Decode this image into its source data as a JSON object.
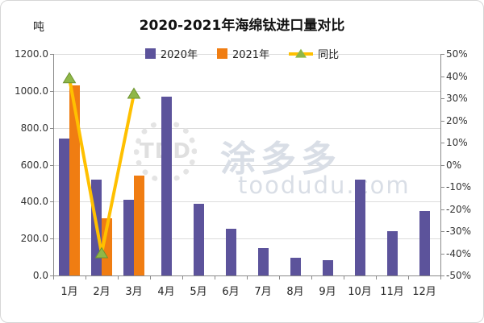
{
  "chart": {
    "title": "2020-2021年海绵钛进口量对比",
    "unit_label": "吨",
    "legend": [
      {
        "label": "2020年"
      },
      {
        "label": "2021年"
      },
      {
        "label": "同比"
      }
    ],
    "watermark": {
      "logo_text": "TDD",
      "brand": "涂多多",
      "domain": "toodudu.com"
    }
  },
  "chart_data": {
    "type": "bar",
    "title": "2020-2021年海绵钛进口量对比",
    "categories": [
      "1月",
      "2月",
      "3月",
      "4月",
      "5月",
      "6月",
      "7月",
      "8月",
      "9月",
      "10月",
      "11月",
      "12月"
    ],
    "series": [
      {
        "name": "2020年",
        "type": "bar",
        "axis": "left",
        "color": "#5c539b",
        "values": [
          740,
          520,
          410,
          970,
          390,
          255,
          150,
          95,
          85,
          520,
          240,
          350
        ]
      },
      {
        "name": "2021年",
        "type": "bar",
        "axis": "left",
        "color": "#f07d12",
        "values": [
          1030,
          310,
          540,
          null,
          null,
          null,
          null,
          null,
          null,
          null,
          null,
          null
        ]
      },
      {
        "name": "同比",
        "type": "line",
        "axis": "right",
        "color": "#ffc000",
        "marker": "triangle",
        "marker_color": "#8fb748",
        "marker_stroke": "#6e9430",
        "values": [
          39,
          -40,
          32,
          null,
          null,
          null,
          null,
          null,
          null,
          null,
          null,
          null
        ]
      }
    ],
    "left_axis": {
      "label": "吨",
      "min": 0,
      "max": 1200,
      "step": 200,
      "tick_labels": [
        "0.0",
        "200.0",
        "400.0",
        "600.0",
        "800.0",
        "1000.0",
        "1200.0"
      ]
    },
    "right_axis": {
      "min": -50,
      "max": 50,
      "step": 10,
      "tick_labels": [
        "-50%",
        "-40%",
        "-30%",
        "-20%",
        "-10%",
        "0%",
        "10%",
        "20%",
        "30%",
        "40%",
        "50%"
      ]
    },
    "grid": true,
    "legend_position": "top",
    "watermark": "涂多多 toodudu.com"
  }
}
